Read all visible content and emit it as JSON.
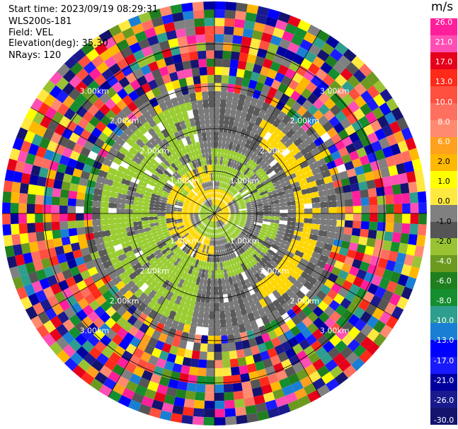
{
  "chart_data": {
    "type": "ppi",
    "header": {
      "start_time": "Start time: 2023/09/19 08:29:31",
      "instrument": "WLS200s-181",
      "field": "Field: VEL",
      "elevation": "Elevation(deg): 35.30",
      "nrays": "NRays: 120"
    },
    "n_rays": 120,
    "n_gates": 26,
    "colorbar": {
      "unit": "m/s",
      "ticks": [
        "26.0",
        "21.0",
        "17.0",
        "13.0",
        "10.0",
        "8.0",
        "6.0",
        "2.0",
        "1.0",
        "0.0",
        "-1.0",
        "-2.0",
        "-4.0",
        "-6.0",
        "-8.0",
        "-10.0",
        "-13.0",
        "-17.0",
        "-21.0",
        "-26.0",
        "-30.0"
      ],
      "colors": [
        "#ff1f9b",
        "#ff4fb5",
        "#e6001a",
        "#ff2a1a",
        "#ff4f3f",
        "#ff6f5f",
        "#ff8a70",
        "#ffa01f",
        "#ffb800",
        "#ffff00",
        "#ffe840",
        "#808080",
        "#555555",
        "#99c333",
        "#6b9a1f",
        "#1f7f1f",
        "#148e2f",
        "#2e9e8e",
        "#1a7fd4",
        "#0000ff",
        "#1a1aff",
        "#00009e",
        "#1a1a8e",
        "#14146e"
      ],
      "vmin": -30.0,
      "vmax": 26.0
    },
    "rings": {
      "labels": [
        "1.00km",
        "2.00km",
        "3.00km"
      ],
      "shown_ranges_km": [
        1,
        2,
        3
      ]
    },
    "inner_pattern": {
      "gray": "#7a7a7a",
      "dark_gray": "#5a5a5a",
      "green": "#9acd32",
      "yellow": "#ffd700",
      "white": "#ffffff"
    }
  }
}
